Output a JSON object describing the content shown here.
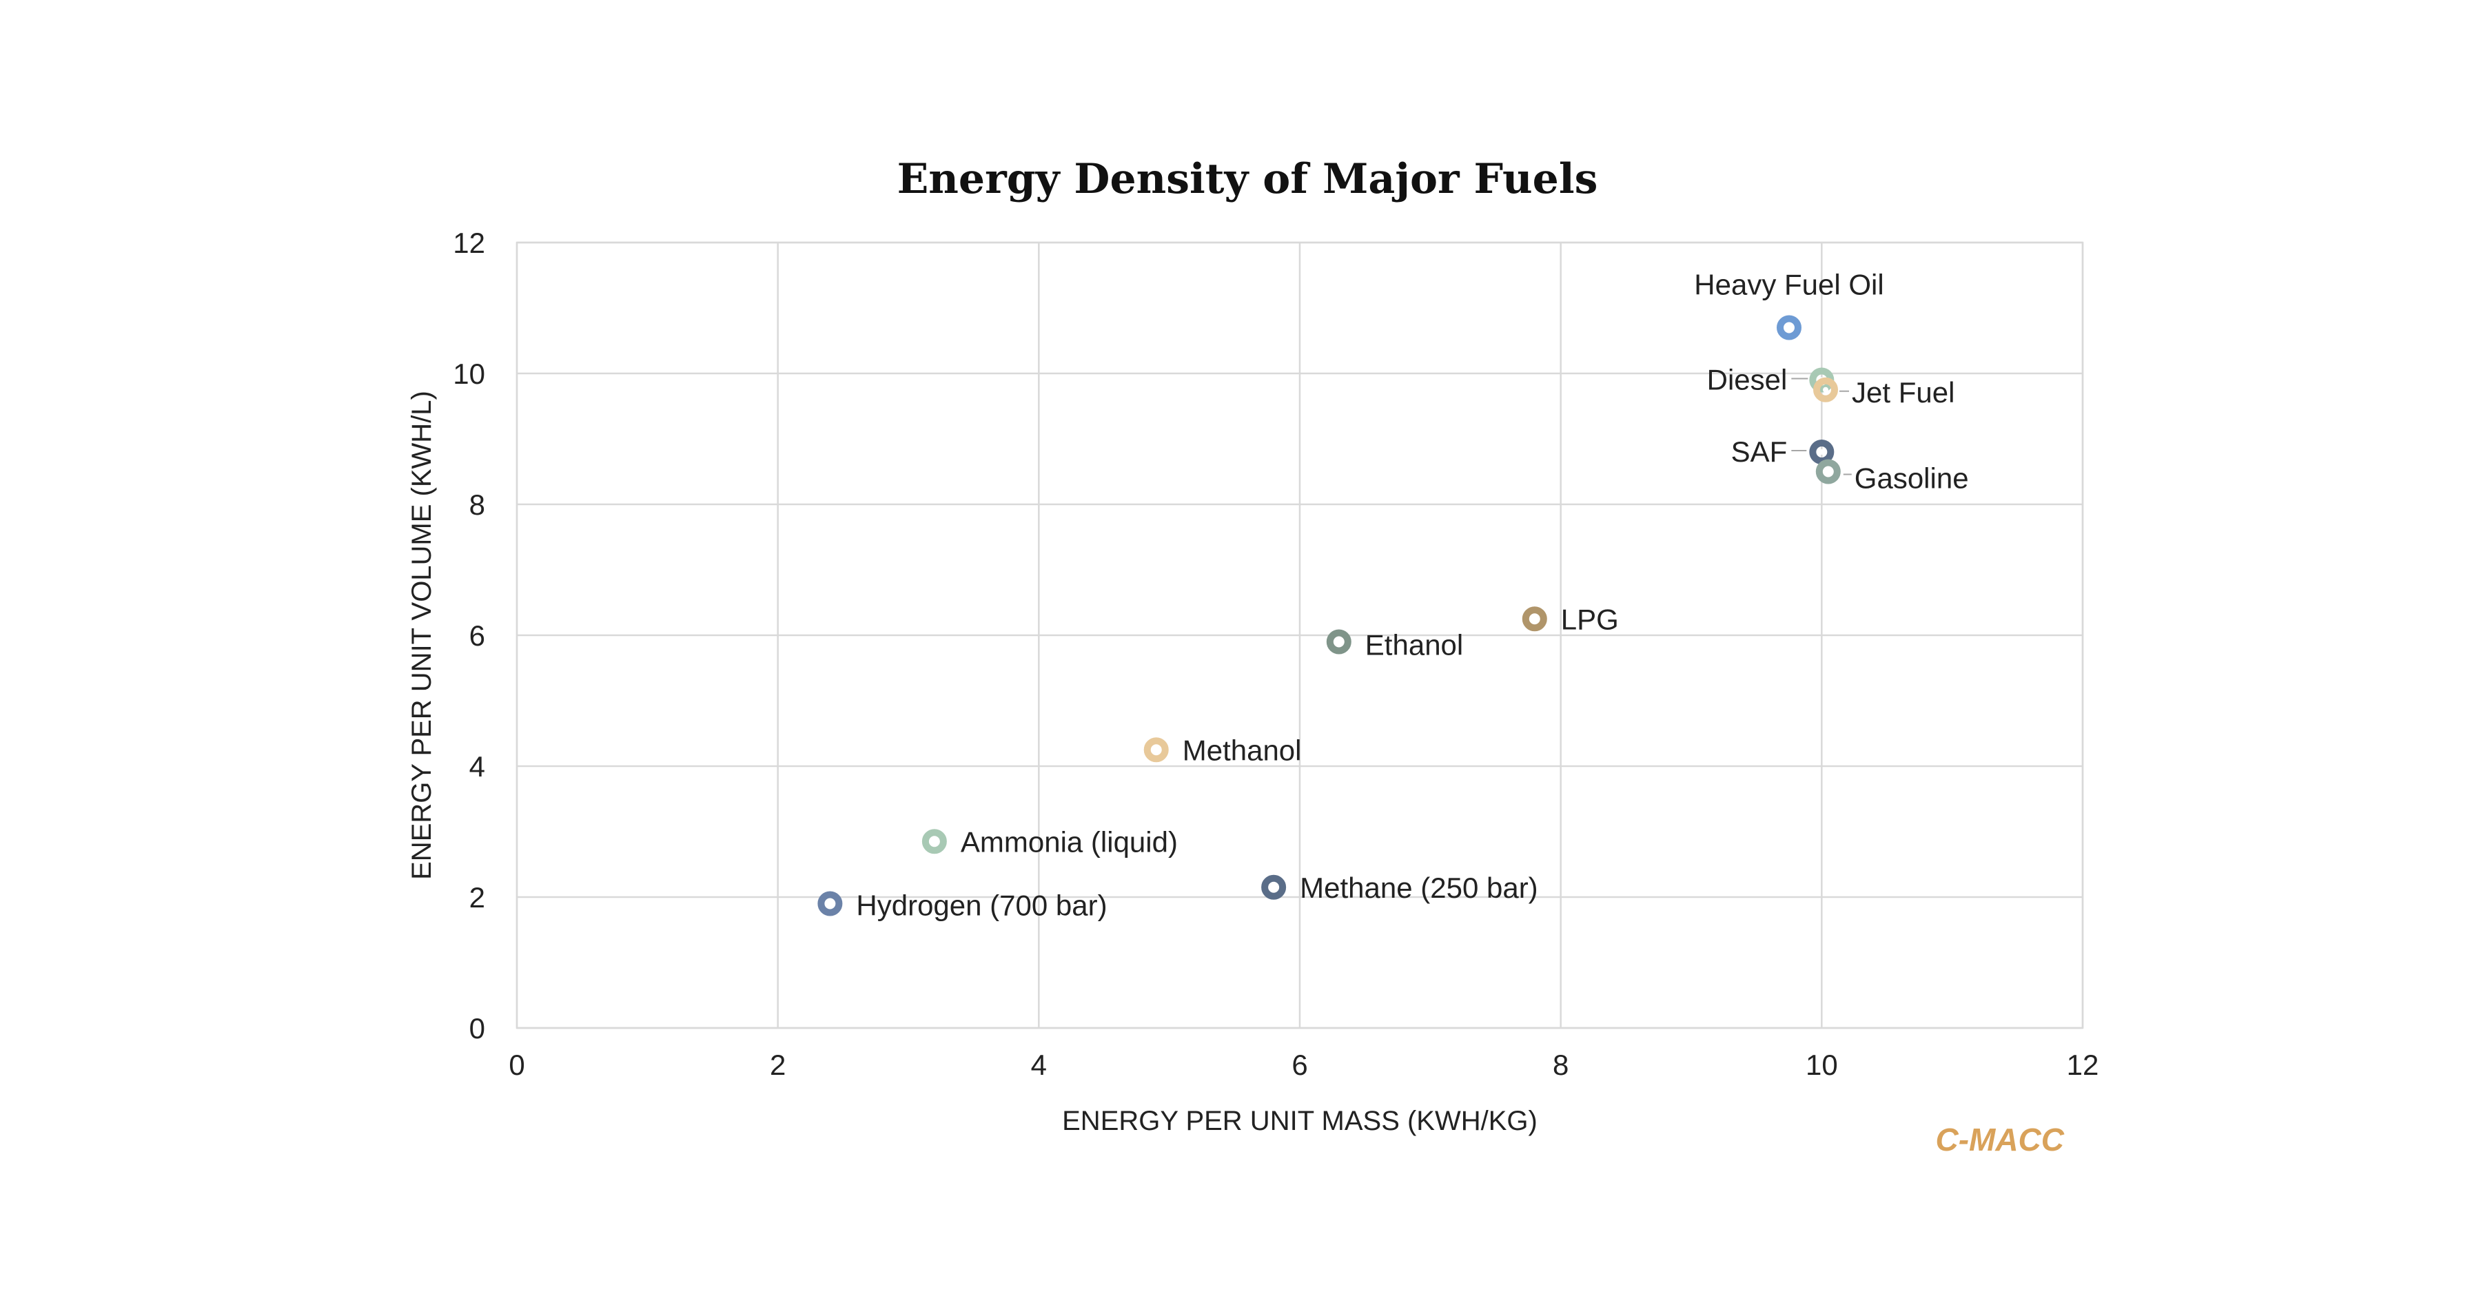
{
  "chart_data": {
    "type": "scatter",
    "title": "Energy Density of Major Fuels",
    "xlabel": "ENERGY PER UNIT MASS (KWH/KG)",
    "ylabel": "ENERGY PER UNIT VOLUME (KWH/L)",
    "xlim": [
      0,
      12
    ],
    "ylim": [
      0,
      12
    ],
    "xticks": [
      "0",
      "2",
      "4",
      "6",
      "8",
      "10",
      "12"
    ],
    "yticks": [
      "0",
      "2",
      "4",
      "6",
      "8",
      "10",
      "12"
    ],
    "grid": true,
    "points": [
      {
        "label": "Heavy Fuel Oil",
        "x": 9.75,
        "y": 10.7,
        "color": "#6e9bd4",
        "label_pos": "above"
      },
      {
        "label": "Diesel",
        "x": 10.0,
        "y": 9.9,
        "color": "#a8c9b4",
        "label_pos": "left"
      },
      {
        "label": "Jet Fuel",
        "x": 10.03,
        "y": 9.75,
        "color": "#e8c99a",
        "label_pos": "right"
      },
      {
        "label": "SAF",
        "x": 10.0,
        "y": 8.8,
        "color": "#5a6d88",
        "label_pos": "left"
      },
      {
        "label": "Gasoline",
        "x": 10.05,
        "y": 8.5,
        "color": "#8fa79e",
        "label_pos": "right"
      },
      {
        "label": "LPG",
        "x": 7.8,
        "y": 6.25,
        "color": "#b0956a",
        "label_pos": "right"
      },
      {
        "label": "Ethanol",
        "x": 6.3,
        "y": 5.9,
        "color": "#7f9489",
        "label_pos": "right"
      },
      {
        "label": "Methanol",
        "x": 4.9,
        "y": 4.25,
        "color": "#e8c99a",
        "label_pos": "right"
      },
      {
        "label": "Ammonia (liquid)",
        "x": 3.2,
        "y": 2.85,
        "color": "#a8c9b4",
        "label_pos": "right"
      },
      {
        "label": "Methane (250 bar)",
        "x": 5.8,
        "y": 2.15,
        "color": "#5a6d88",
        "label_pos": "right"
      },
      {
        "label": "Hydrogen (700 bar)",
        "x": 2.4,
        "y": 1.9,
        "color": "#6b82a8",
        "label_pos": "right"
      }
    ]
  },
  "brand": {
    "text": "C-MACC",
    "color": "#d9a25a"
  }
}
